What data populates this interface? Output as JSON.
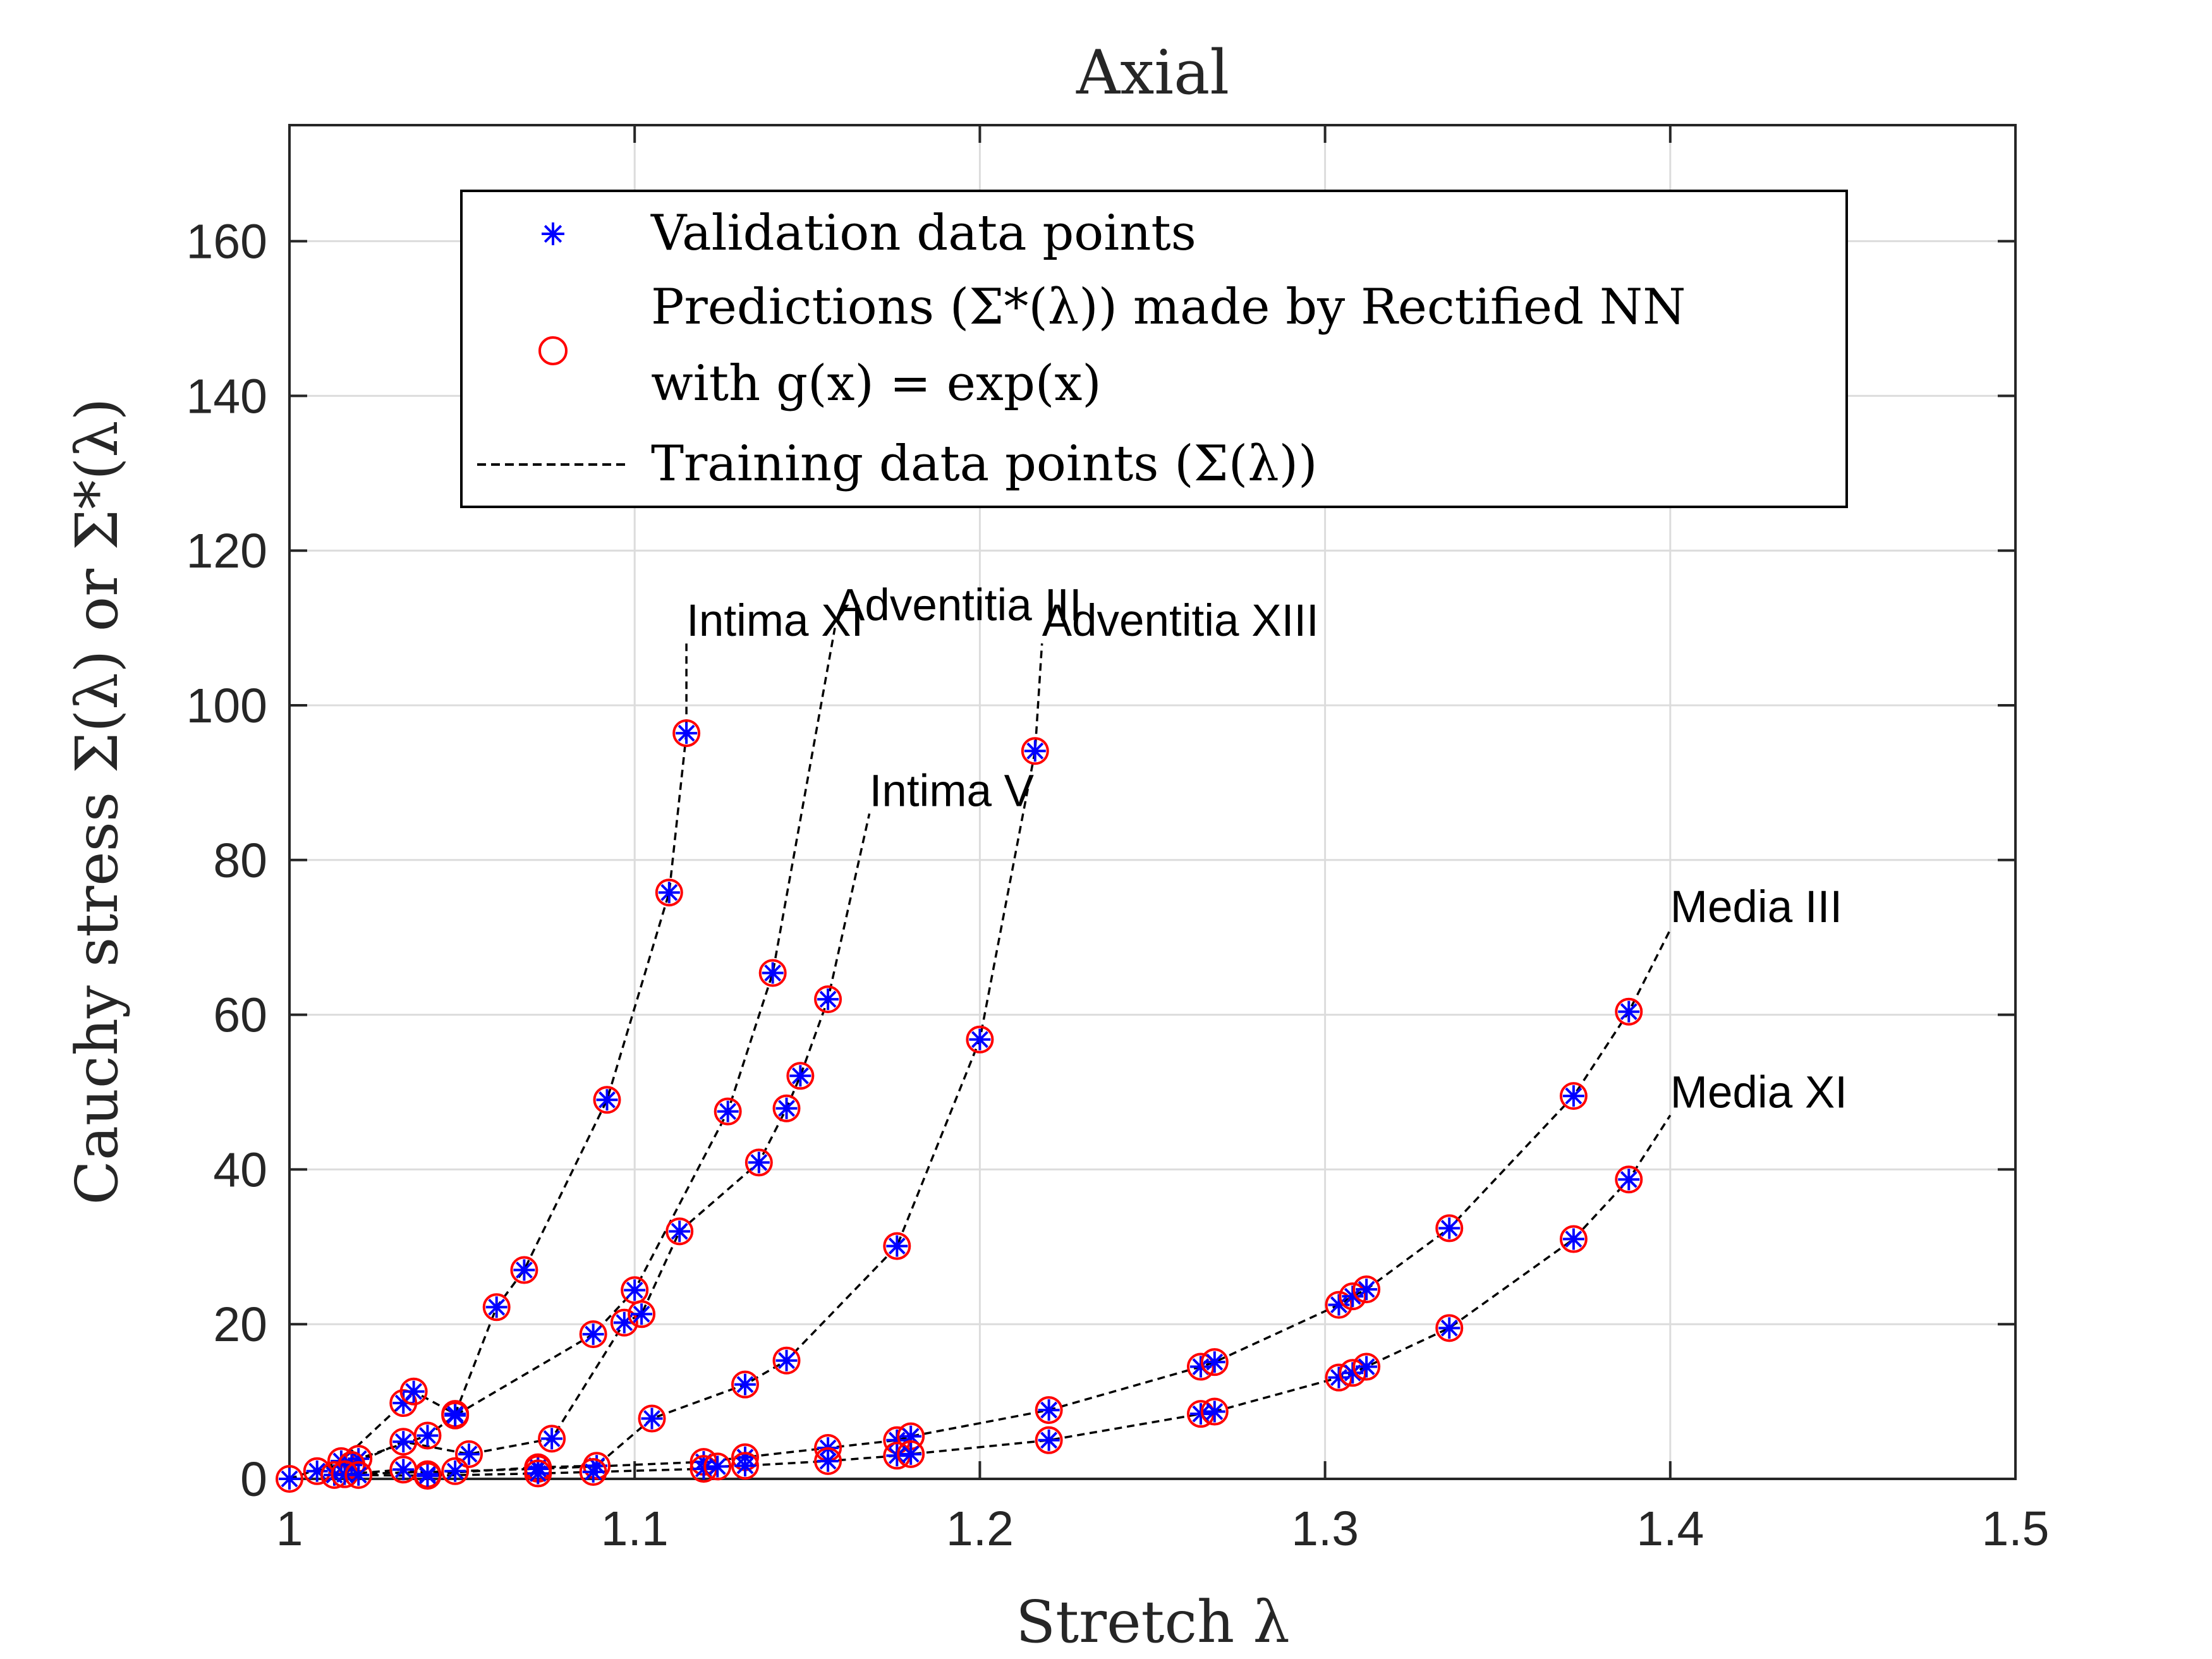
{
  "chart_data": {
    "type": "scatter",
    "title": "Axial",
    "xlabel": "Stretch λ",
    "ylabel": "Cauchy stress Σ(λ) or Σ*(λ)",
    "xlim": [
      1,
      1.5
    ],
    "ylim": [
      0,
      175
    ],
    "x_ticks": [
      "1",
      "1.1",
      "1.2",
      "1.3",
      "1.4",
      "1.5"
    ],
    "y_ticks": [
      "0",
      "20",
      "40",
      "60",
      "80",
      "100",
      "120",
      "140",
      "160"
    ],
    "grid": true,
    "legend_position": "top",
    "legend": {
      "validation": "Validation data points",
      "prediction_line1": "Predictions (Σ*(λ)) made by Rectified NN",
      "prediction_line2": "with g(x) = exp(x)",
      "training": "Training data points (Σ(λ))"
    },
    "colors": {
      "validation": "#0000ff",
      "prediction": "#ff0000",
      "training": "#000000"
    },
    "series": [
      {
        "name": "Intima XI",
        "label_anchor": [
          1.115,
          108
        ],
        "x": [
          1.0,
          1.015,
          1.033,
          1.036,
          1.048,
          1.06,
          1.068,
          1.092,
          1.11,
          1.115
        ],
        "values": [
          0.0,
          2.3,
          9.8,
          11.3,
          8.4,
          22.2,
          27.0,
          49.0,
          75.8,
          96.4
        ]
      },
      {
        "name": "Adventitia III",
        "label_anchor": [
          1.158,
          110
        ],
        "x": [
          1.008,
          1.02,
          1.04,
          1.048,
          1.088,
          1.1,
          1.127,
          1.14
        ],
        "values": [
          1.0,
          2.6,
          5.6,
          8.2,
          18.7,
          24.4,
          47.5,
          65.4
        ]
      },
      {
        "name": "Adventitia XIII",
        "label_anchor": [
          1.218,
          108
        ],
        "x": [
          1.013,
          1.033,
          1.04,
          1.072,
          1.089,
          1.105,
          1.132,
          1.144,
          1.176,
          1.2,
          1.216
        ],
        "values": [
          0.5,
          1.2,
          0.6,
          1.5,
          1.7,
          7.8,
          12.2,
          15.3,
          30.1,
          56.8,
          94.1
        ]
      },
      {
        "name": "Intima V",
        "label_anchor": [
          1.168,
          86
        ],
        "x": [
          1.018,
          1.033,
          1.052,
          1.076,
          1.097,
          1.102,
          1.113,
          1.136,
          1.144,
          1.148,
          1.156
        ],
        "values": [
          1.8,
          4.8,
          3.2,
          5.2,
          20.2,
          21.3,
          32.0,
          40.9,
          47.9,
          52.1,
          62.0
        ]
      },
      {
        "name": "Media III",
        "label_anchor": [
          1.4,
          71
        ],
        "x": [
          1.016,
          1.048,
          1.072,
          1.12,
          1.132,
          1.156,
          1.176,
          1.18,
          1.22,
          1.264,
          1.268,
          1.304,
          1.308,
          1.312,
          1.336,
          1.372,
          1.388
        ],
        "values": [
          0.6,
          1.0,
          1.3,
          2.2,
          2.8,
          4.0,
          5.0,
          5.5,
          8.9,
          14.5,
          15.1,
          22.5,
          23.6,
          24.5,
          32.4,
          49.5,
          60.4
        ]
      },
      {
        "name": "Media XI",
        "label_anchor": [
          1.4,
          47
        ],
        "x": [
          1.02,
          1.04,
          1.072,
          1.088,
          1.12,
          1.124,
          1.132,
          1.156,
          1.176,
          1.18,
          1.22,
          1.264,
          1.268,
          1.304,
          1.308,
          1.312,
          1.336,
          1.372,
          1.388
        ],
        "values": [
          0.5,
          0.4,
          0.7,
          0.9,
          1.3,
          1.6,
          1.7,
          2.3,
          3.0,
          3.2,
          5.0,
          8.4,
          8.7,
          13.1,
          13.7,
          14.5,
          19.5,
          31.0,
          38.7
        ]
      }
    ]
  }
}
